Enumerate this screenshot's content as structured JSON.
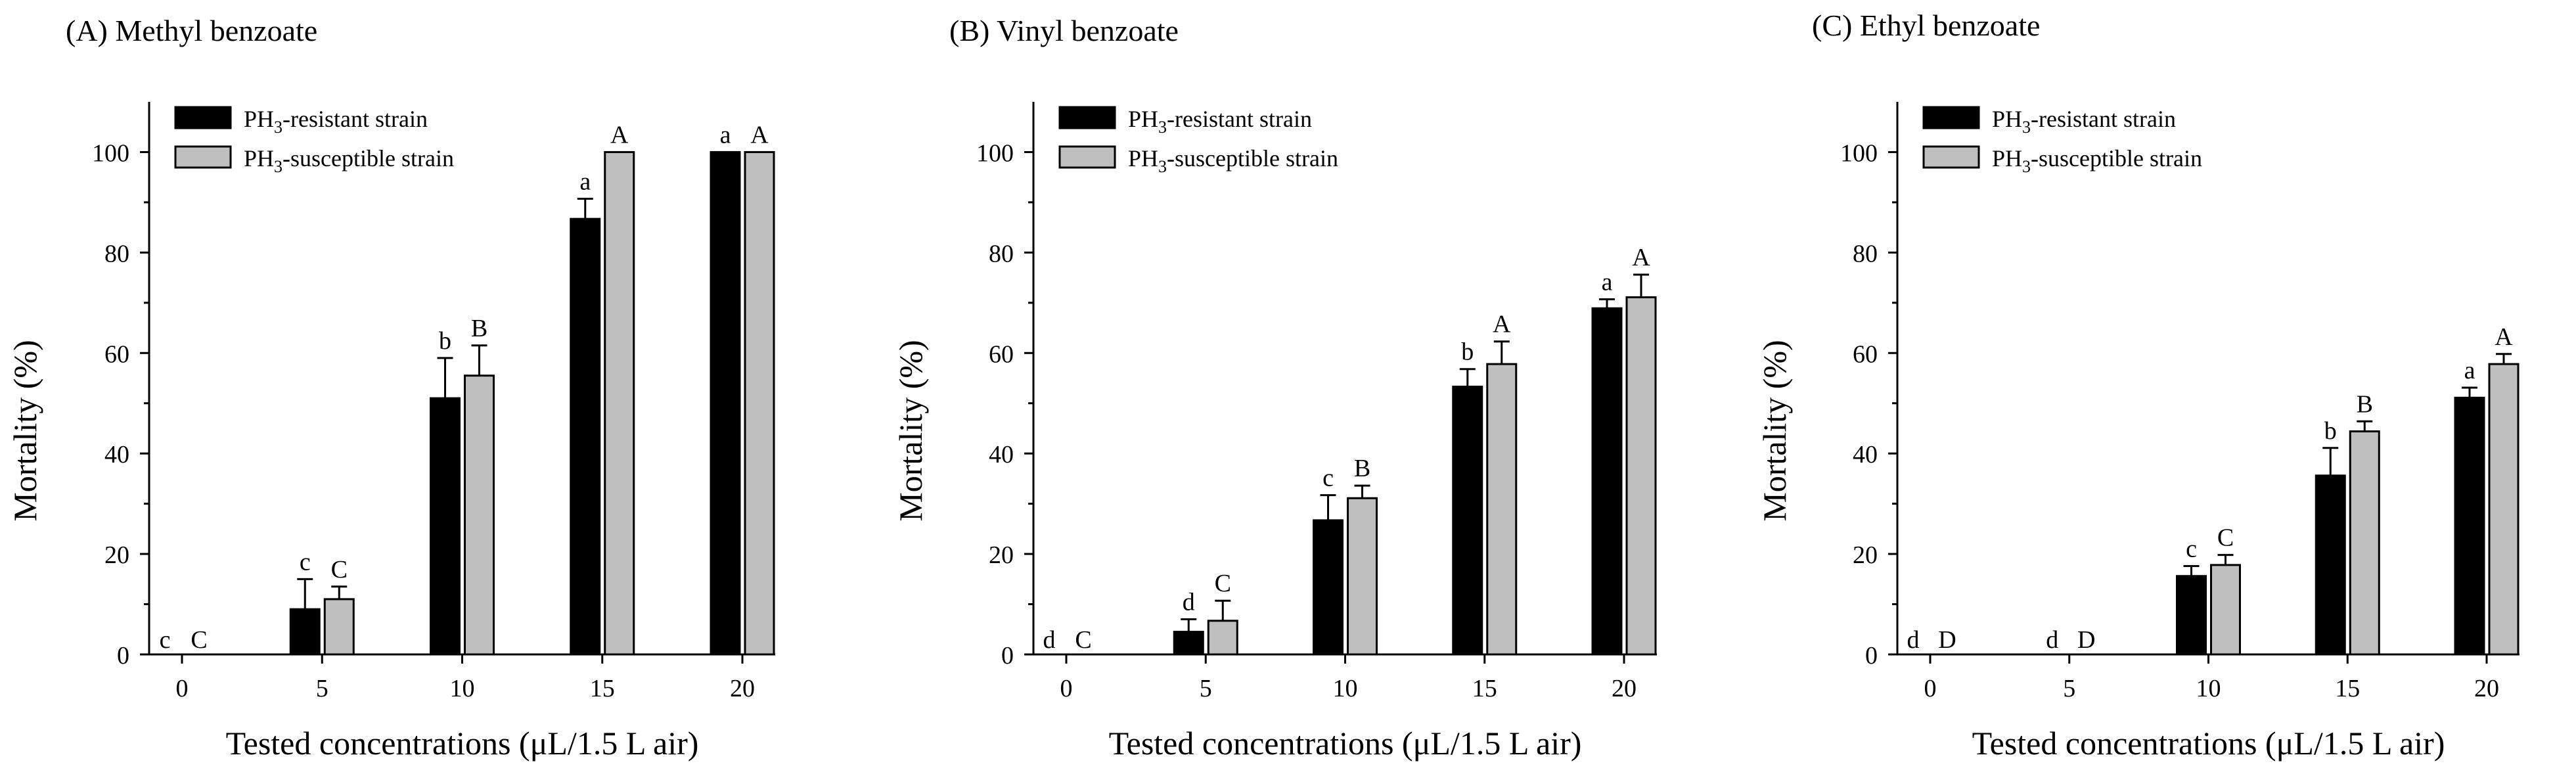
{
  "chart_data": [
    {
      "type": "bar",
      "panel": "A",
      "title": "(A) Methyl benzoate",
      "xlabel": "Tested concentrations (μL/1.5 L air)",
      "ylabel": "Mortality (%)",
      "categories": [
        "0",
        "5",
        "10",
        "15",
        "20"
      ],
      "ylim": [
        0,
        110
      ],
      "yticks": [
        "0",
        "20",
        "40",
        "60",
        "80",
        "100"
      ],
      "legend_position": "top-left",
      "series": [
        {
          "name": "PH3-resistant strain",
          "name_main": "PH",
          "name_sub": "3",
          "name_tail": "-resistant strain",
          "color": "#000000",
          "values": [
            0,
            9,
            51,
            86.7,
            100
          ],
          "errors": [
            0,
            6,
            8,
            4,
            0
          ],
          "letters": [
            "c",
            "c",
            "b",
            "a",
            "a"
          ]
        },
        {
          "name": "PH3-susceptible strain",
          "name_main": "PH",
          "name_sub": "3",
          "name_tail": "-susceptible strain",
          "color": "#bfbfbf",
          "values": [
            0,
            11,
            55.5,
            100,
            100
          ],
          "errors": [
            0,
            2.5,
            6,
            0,
            0
          ],
          "letters": [
            "C",
            "C",
            "B",
            "A",
            "A"
          ]
        }
      ]
    },
    {
      "type": "bar",
      "panel": "B",
      "title": "(B) Vinyl benzoate",
      "xlabel": "Tested concentrations (μL/1.5 L air)",
      "ylabel": "Mortality (%)",
      "categories": [
        "0",
        "5",
        "10",
        "15",
        "20"
      ],
      "ylim": [
        0,
        110
      ],
      "yticks": [
        "0",
        "20",
        "40",
        "60",
        "80",
        "100"
      ],
      "legend_position": "top-left",
      "series": [
        {
          "name": "PH3-resistant strain",
          "name_main": "PH",
          "name_sub": "3",
          "name_tail": "-resistant strain",
          "color": "#000000",
          "values": [
            0,
            4.5,
            26.7,
            53.3,
            68.9
          ],
          "errors": [
            0,
            2.5,
            5,
            3.5,
            1.8
          ],
          "letters": [
            "d",
            "d",
            "c",
            "b",
            "a"
          ]
        },
        {
          "name": "PH3-susceptible strain",
          "name_main": "PH",
          "name_sub": "3",
          "name_tail": "-susceptible strain",
          "color": "#bfbfbf",
          "values": [
            0,
            6.7,
            31.1,
            57.8,
            71.1
          ],
          "errors": [
            0,
            4,
            2.5,
            4.5,
            4.5
          ],
          "letters": [
            "C",
            "C",
            "B",
            "A",
            "A"
          ]
        }
      ]
    },
    {
      "type": "bar",
      "panel": "C",
      "title": "(C) Ethyl benzoate",
      "xlabel": "Tested concentrations (μL/1.5 L air)",
      "ylabel": "Mortality (%)",
      "categories": [
        "0",
        "5",
        "10",
        "15",
        "20"
      ],
      "ylim": [
        0,
        110
      ],
      "yticks": [
        "0",
        "20",
        "40",
        "60",
        "80",
        "100"
      ],
      "legend_position": "top-left",
      "series": [
        {
          "name": "PH3-resistant strain",
          "name_main": "PH",
          "name_sub": "3",
          "name_tail": "-resistant strain",
          "color": "#000000",
          "values": [
            0,
            0,
            15.6,
            35.6,
            51.1
          ],
          "errors": [
            0,
            0,
            2,
            5.5,
            2
          ],
          "letters": [
            "d",
            "d",
            "c",
            "b",
            "a"
          ]
        },
        {
          "name": "PH3-susceptible strain",
          "name_main": "PH",
          "name_sub": "3",
          "name_tail": "-susceptible strain",
          "color": "#bfbfbf",
          "values": [
            0,
            0,
            17.8,
            44.4,
            57.8
          ],
          "errors": [
            0,
            0,
            2,
            2,
            2
          ],
          "letters": [
            "D",
            "D",
            "C",
            "B",
            "A"
          ]
        }
      ]
    }
  ]
}
